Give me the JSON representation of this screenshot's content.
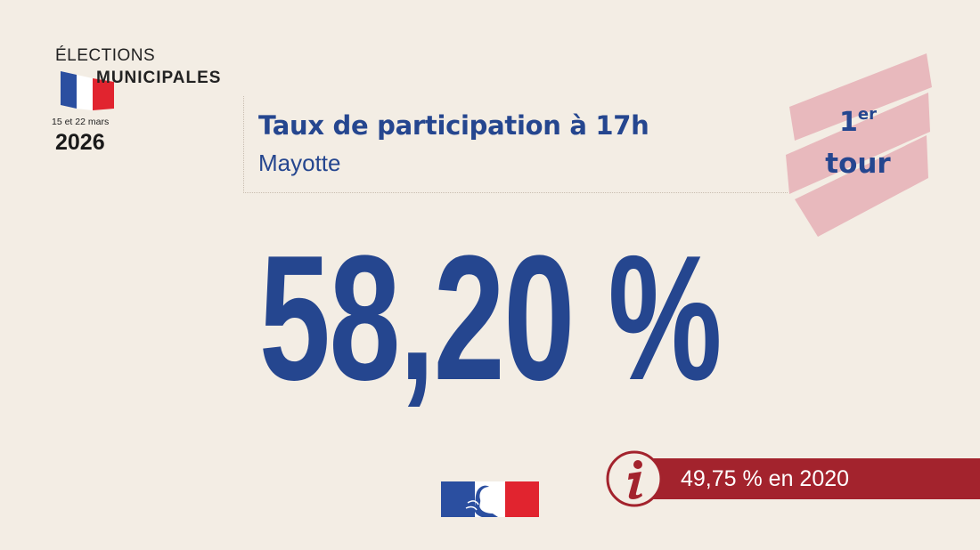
{
  "logo": {
    "line1": "ÉLECTIONS",
    "line2": "MUNICIPALES",
    "dates": "15 et 22 mars",
    "year": "2026",
    "flag_colors": [
      "#2b4fa0",
      "#ffffff",
      "#e1242f"
    ]
  },
  "header": {
    "title": "Taux de participation à 17h",
    "subtitle": "Mayotte"
  },
  "round_badge": {
    "number": "1",
    "superscript": "er",
    "word": "tour",
    "badge_color": "#e8b9bd"
  },
  "rate": {
    "value": "58,20 %"
  },
  "info": {
    "icon": "info-icon",
    "text": "49,75 % en 2020",
    "bar_color": "#a3232d"
  },
  "footer": {
    "logo_icon": "marianne-logo"
  },
  "colors": {
    "background": "#f3ede4",
    "primary_blue": "#25468f",
    "accent_red": "#a3232d"
  }
}
